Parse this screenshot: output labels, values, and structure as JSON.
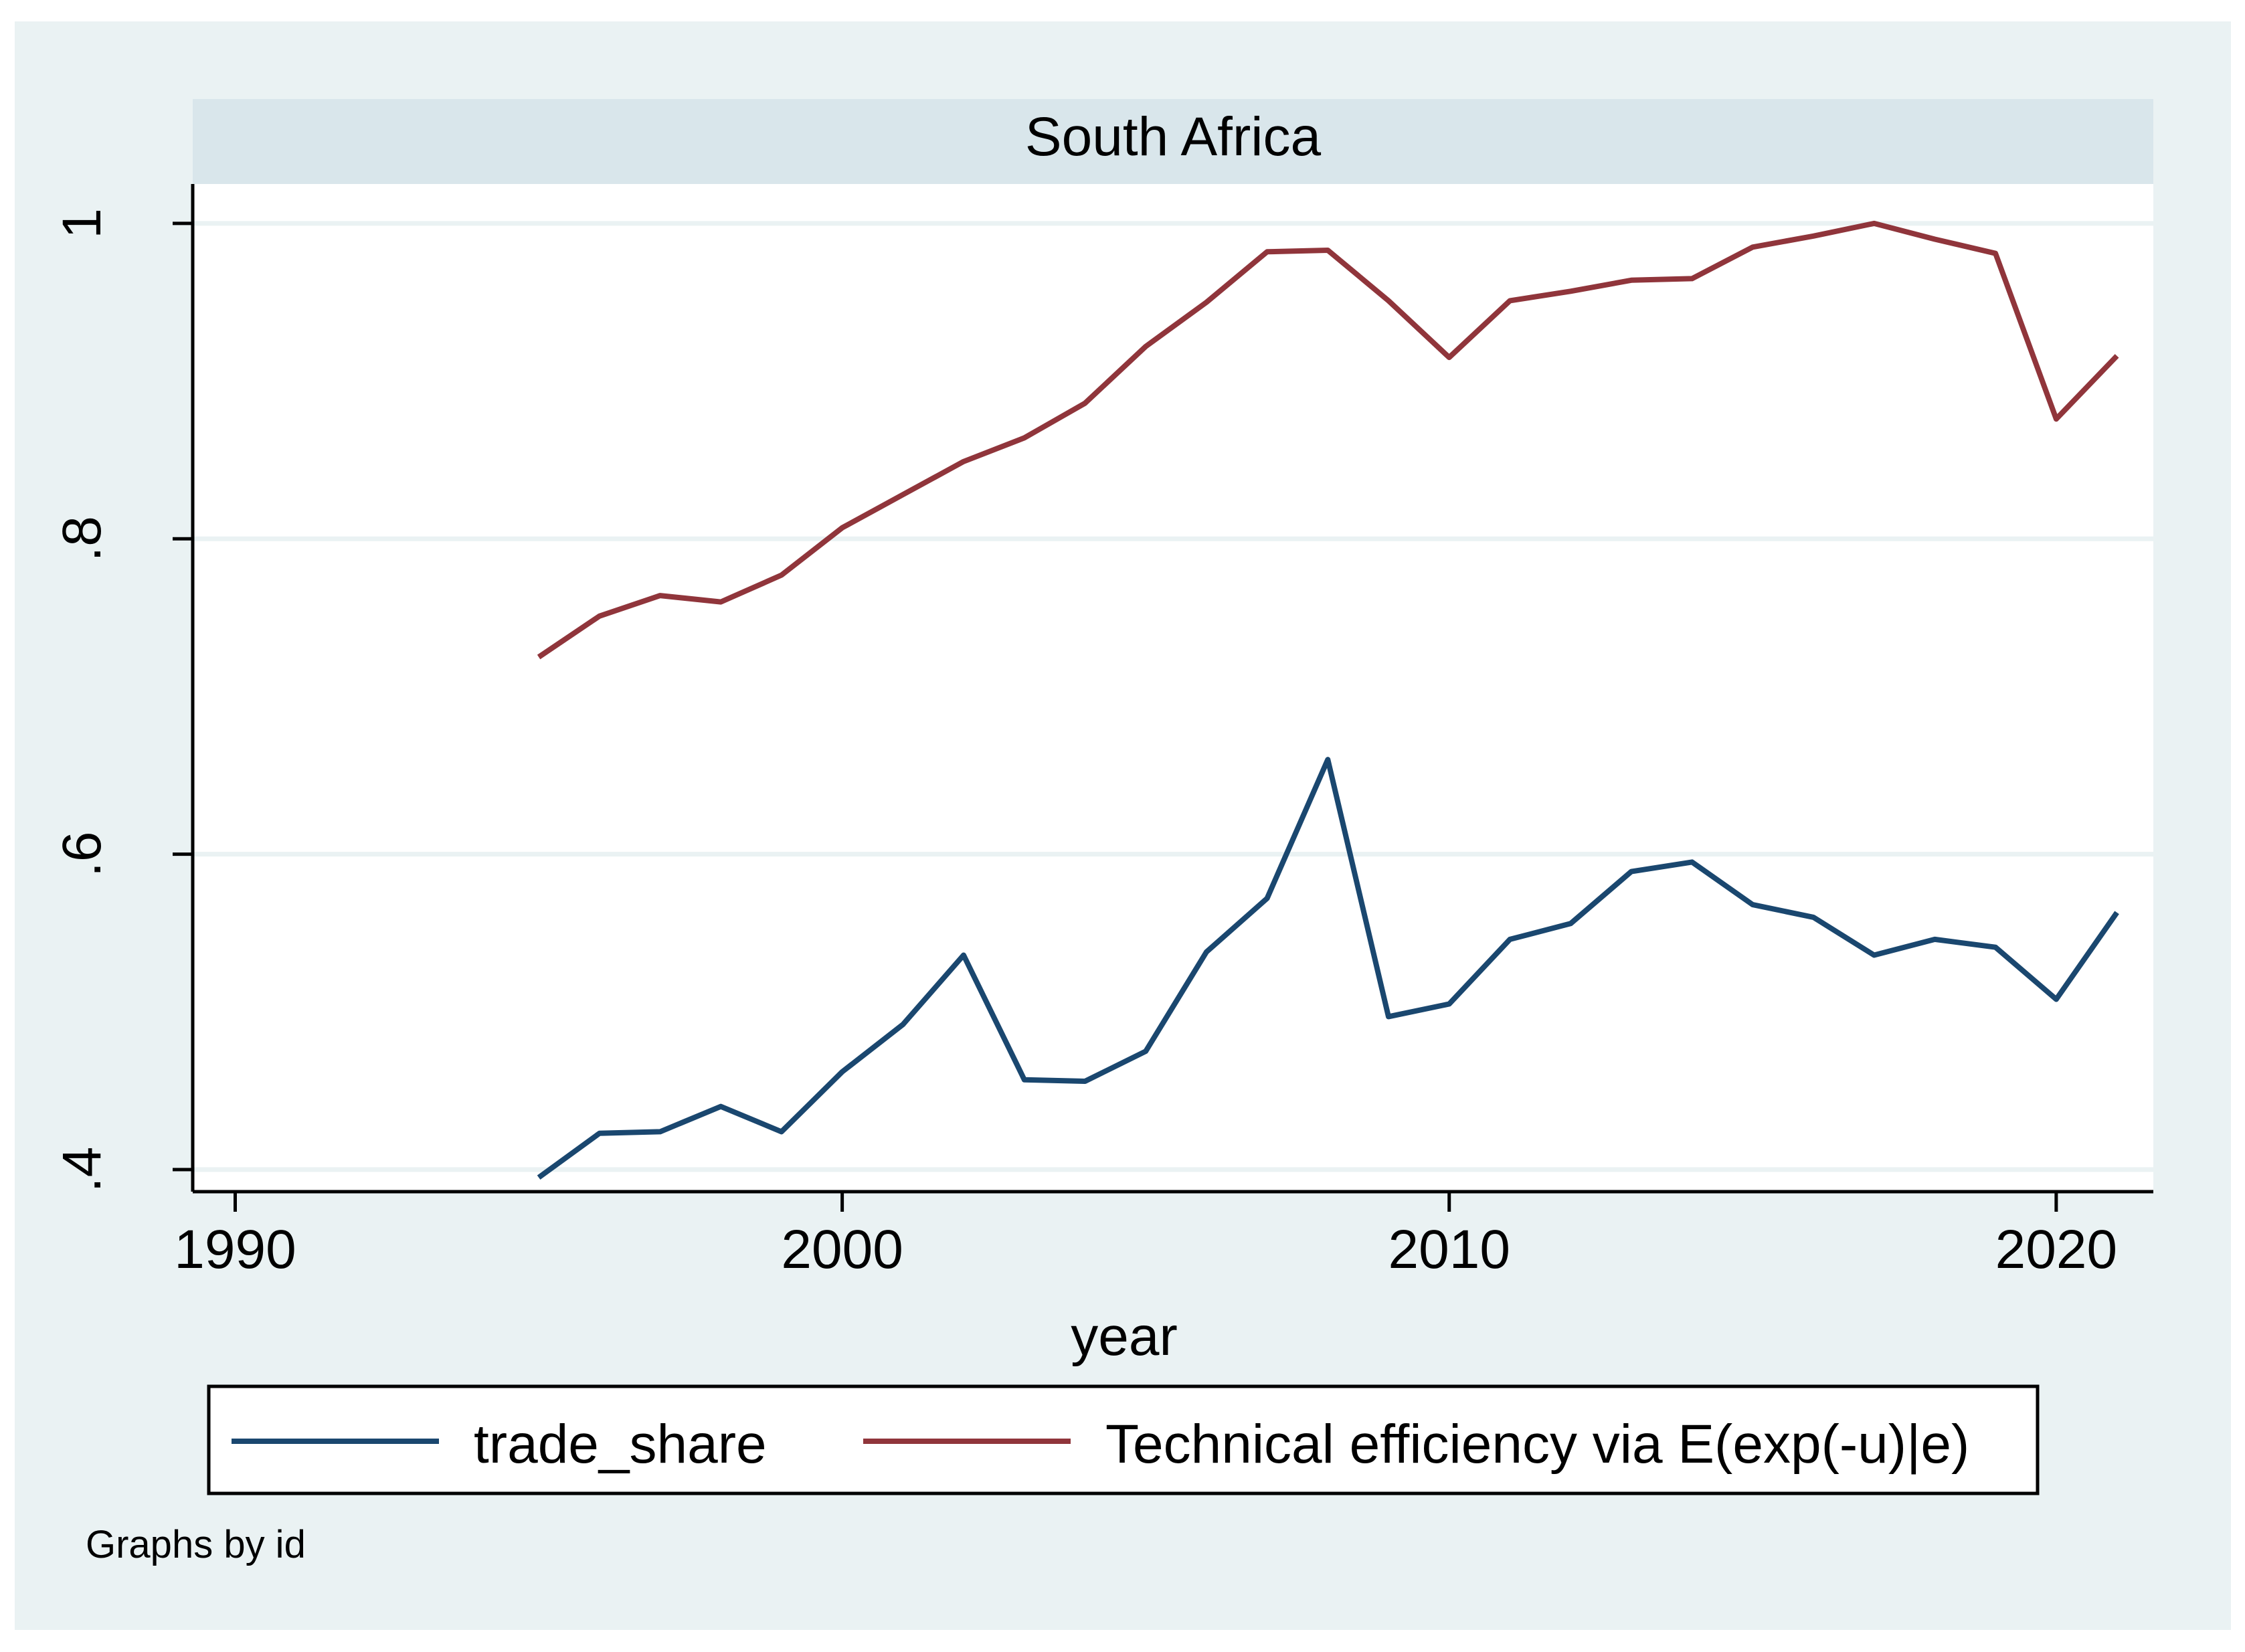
{
  "chart_data": {
    "type": "line",
    "panel_title": "South Africa",
    "xlabel": "year",
    "ylabel": "",
    "xlim": [
      1989.3,
      2021.6
    ],
    "ylim": [
      0.386,
      1.025
    ],
    "xticks": [
      1990,
      2000,
      2010,
      2020
    ],
    "xtick_labels": [
      "1990",
      "2000",
      "2010",
      "2020"
    ],
    "yticks": [
      0.4,
      0.6,
      0.8,
      1.0
    ],
    "ytick_labels": [
      ".4",
      ".6",
      ".8",
      "1"
    ],
    "grid": true,
    "legend_position": "bottom",
    "note": "Graphs by id",
    "x": [
      1995,
      1996,
      1997,
      1998,
      1999,
      2000,
      2001,
      2002,
      2003,
      2004,
      2005,
      2006,
      2007,
      2008,
      2009,
      2010,
      2011,
      2012,
      2013,
      2014,
      2015,
      2016,
      2017,
      2018,
      2019,
      2020,
      2021
    ],
    "series": [
      {
        "name": "trade_share",
        "color": "#1a476f",
        "values": [
          0.395,
          0.423,
          0.424,
          0.44,
          0.424,
          0.462,
          0.492,
          0.536,
          0.457,
          0.456,
          0.475,
          0.538,
          0.572,
          0.66,
          0.497,
          0.505,
          0.546,
          0.556,
          0.589,
          0.595,
          0.568,
          0.56,
          0.536,
          0.546,
          0.541,
          0.508,
          0.563
        ]
      },
      {
        "name": "Technical efficiency via E(exp(-u)|e)",
        "color": "#90353b",
        "values": [
          0.725,
          0.751,
          0.764,
          0.76,
          0.777,
          0.807,
          0.828,
          0.849,
          0.864,
          0.886,
          0.922,
          0.95,
          0.982,
          0.983,
          0.951,
          0.915,
          0.951,
          0.957,
          0.964,
          0.965,
          0.985,
          0.992,
          1.0,
          0.99,
          0.981,
          0.876,
          0.916
        ]
      }
    ]
  }
}
